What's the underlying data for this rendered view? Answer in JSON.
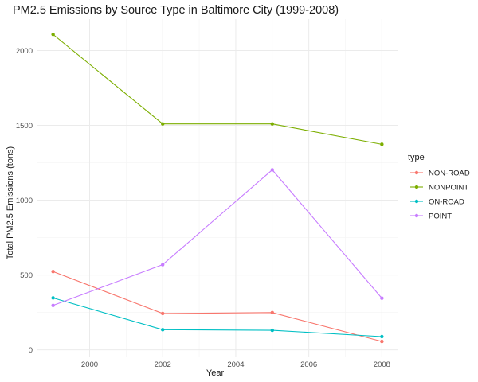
{
  "chart_data": {
    "type": "line",
    "title": "PM2.5 Emissions by Source Type in Baltimore City (1999-2008)",
    "xlabel": "Year",
    "ylabel": "Total PM2.5 Emissions (tons)",
    "x": [
      1999,
      2002,
      2005,
      2008
    ],
    "xlim": [
      1998.55,
      2008.45
    ],
    "ylim": [
      -50,
      2210
    ],
    "xticks": [
      2000,
      2002,
      2004,
      2006,
      2008
    ],
    "xtick_labels": [
      "2000",
      "2002",
      "2004",
      "2006",
      "2008"
    ],
    "yticks": [
      0,
      500,
      1000,
      1500,
      2000
    ],
    "ytick_labels": [
      "0",
      "500",
      "1000",
      "1500",
      "2000"
    ],
    "grid": true,
    "legend": {
      "title": "type",
      "position": "right"
    },
    "series": [
      {
        "name": "NON-ROAD",
        "color": "#F8766D",
        "values": [
          522.94,
          242.85,
          248.93,
          55.82
        ]
      },
      {
        "name": "NONPOINT",
        "color": "#7CAE00",
        "values": [
          2107.63,
          1509.5,
          1509.5,
          1373.21
        ]
      },
      {
        "name": "ON-ROAD",
        "color": "#00BFC4",
        "values": [
          346.82,
          134.31,
          130.43,
          88.28
        ]
      },
      {
        "name": "POINT",
        "color": "#C77CFF",
        "values": [
          296.8,
          569.26,
          1202.49,
          344.98
        ]
      }
    ]
  }
}
